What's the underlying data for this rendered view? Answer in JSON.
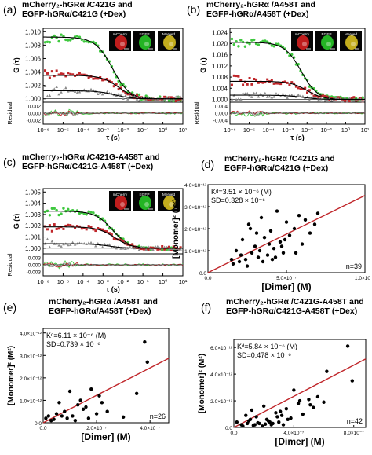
{
  "panels": [
    {
      "letter": "(a)",
      "title1": "mCherry₂-hGRα /C421G and",
      "title2": "EGFP-hGRα/C421G (+Dex)",
      "ylabel": "G (τ)",
      "xlabel": "τ (s)",
      "residual_label": "Residual",
      "yticks": [
        "1.010",
        "1.008",
        "1.006",
        "1.004",
        "1.002",
        "1.000"
      ],
      "res_ticks": [
        "0.002",
        "0.000",
        "-0.002"
      ],
      "xticks": [
        "10⁻⁶",
        "10⁻⁵",
        "10⁻⁴",
        "10⁻³",
        "10⁻²",
        "10⁻¹",
        "10⁰",
        "10¹"
      ],
      "inset": [
        "mCherry",
        "EGFP",
        "Merged"
      ]
    },
    {
      "letter": "(b)",
      "title1": "mCherry₂-hGRα /A458T and",
      "title2": "EGFP-hGRα/A458T (+Dex)",
      "ylabel": "G (τ)",
      "xlabel": "τ (s)",
      "residual_label": "Residual",
      "yticks": [
        "1.024",
        "1.020",
        "1.016",
        "1.012",
        "1.008",
        "1.004",
        "1.000"
      ],
      "res_ticks": [
        "0.004",
        "0.000",
        "-0.004"
      ],
      "xticks": [
        "10⁻⁶",
        "10⁻⁵",
        "10⁻⁴",
        "10⁻³",
        "10⁻²",
        "10⁻¹",
        "10⁰",
        "10¹"
      ],
      "inset": [
        "mCherry",
        "EGFP",
        "Merged"
      ]
    },
    {
      "letter": "(c)",
      "title1": "mCherry₂-hGRα /C421G-A458T and",
      "title2": "EGFP-hGRα/C421G-A458T (+Dex)",
      "ylabel": "G (τ)",
      "xlabel": "τ (s)",
      "residual_label": "Residual",
      "yticks": [
        "1.005",
        "1.004",
        "1.003",
        "1.002",
        "1.001",
        "1.000"
      ],
      "res_ticks": [
        "0.003",
        "0.000",
        "-0.003"
      ],
      "xticks": [
        "10⁻⁶",
        "10⁻⁵",
        "10⁻⁴",
        "10⁻³",
        "10⁻²",
        "10⁻¹",
        "10⁰",
        "10¹"
      ],
      "inset": [
        "mCherry",
        "EGFP",
        "Merged"
      ]
    },
    {
      "letter": "(d)",
      "title1": "mCherry₂-hGRα /C421G and",
      "title2": "EGFP-hGRα/C421G (+Dex)",
      "ylabel": "[Monomer]² (M²)",
      "xlabel": "[Dimer] (M)",
      "yticks": [
        "4.0×10⁻¹²",
        "3.0×10⁻¹²",
        "2.0×10⁻¹²",
        "1.0×10⁻¹²",
        "0.0"
      ],
      "xticks": [
        "0.0",
        "5.0×10⁻⁷",
        "1.0×10⁻⁶"
      ],
      "kd": "Kᵈ=3.51 × 10⁻⁶ (M)",
      "sd": "SD=0.328 × 10⁻⁶",
      "n": "n=39"
    },
    {
      "letter": "(e)",
      "title1": "mCherry₂-hGRα /A458T and",
      "title2": "EGFP-hGRα/A458T (+Dex)",
      "ylabel": "[Monomer]² (M²)",
      "xlabel": "[Dimer] (M)",
      "yticks": [
        "4.0×10⁻¹²",
        "3.0×10⁻¹²",
        "2.0×10⁻¹²",
        "1.0×10⁻¹²",
        "0.0"
      ],
      "xticks": [
        "0.0",
        "2.0×10⁻⁷",
        "4.0×10⁻⁷"
      ],
      "kd": "Kᵈ=6.11 × 10⁻⁶ (M)",
      "sd": "SD=0.739 × 10⁻⁶",
      "n": "n=26"
    },
    {
      "letter": "(f)",
      "title1": "mCherry₂-hGRα /C421G-A458T and",
      "title2": "EGFP-hGRα/C421G-A458T (+Dex)",
      "ylabel": "[Monomer]² (M²)",
      "xlabel": "[Dimer] (M)",
      "yticks": [
        "6.0×10⁻¹²",
        "4.0×10⁻¹²",
        "2.0×10⁻¹²",
        "0.0"
      ],
      "xticks": [
        "0.0",
        "4.0×10⁻⁷",
        "8.0×10⁻⁷"
      ],
      "kd": "Kᵈ=5.84 × 10⁻⁶ (M)",
      "sd": "SD=0.478 × 10⁻⁶",
      "n": "n=42"
    }
  ],
  "colors": {
    "green": "#3ec83e",
    "red": "#c0262a",
    "gray": "#8a8a8a",
    "fit": "#000000",
    "line": "#c0262a"
  },
  "chart_data": [
    {
      "type": "line",
      "panel": "a",
      "log_x": true,
      "xlim": [
        1e-06,
        10
      ],
      "ylim": [
        0.9995,
        1.0105
      ],
      "series": [
        {
          "color": "green",
          "G0": 1.0092,
          "tauD": 0.003
        },
        {
          "color": "red",
          "G0": 1.0035,
          "tauD": 0.006
        },
        {
          "color": "gray",
          "G0": 1.0012,
          "tauD": 0.004
        }
      ]
    },
    {
      "type": "line",
      "panel": "b",
      "log_x": true,
      "xlim": [
        1e-06,
        10
      ],
      "ylim": [
        0.999,
        1.0255
      ],
      "series": [
        {
          "color": "green",
          "G0": 1.0205,
          "tauD": 0.005
        },
        {
          "color": "red",
          "G0": 1.0065,
          "tauD": 0.01
        },
        {
          "color": "gray",
          "G0": 1.0015,
          "tauD": 0.006
        }
      ]
    },
    {
      "type": "line",
      "panel": "c",
      "log_x": true,
      "xlim": [
        1e-06,
        10
      ],
      "ylim": [
        0.9995,
        1.0053
      ],
      "series": [
        {
          "color": "green",
          "G0": 1.0033,
          "tauD": 0.003
        },
        {
          "color": "red",
          "G0": 1.0019,
          "tauD": 0.004
        },
        {
          "color": "gray",
          "G0": 1.0004,
          "tauD": 0.002
        }
      ]
    },
    {
      "type": "scatter",
      "panel": "d",
      "xlim": [
        0,
        1e-06
      ],
      "ylim": [
        0,
        4e-12
      ],
      "fit_slope": 3.51e-06,
      "x": [
        1.6e-07,
        1.8e-07,
        2e-07,
        2.2e-07,
        2.4e-07,
        2.6e-07,
        2.8e-07,
        3e-07,
        3.2e-07,
        3.4e-07,
        3.6e-07,
        3.8e-07,
        4e-07,
        4.2e-07,
        4.4e-07,
        4.6e-07,
        4.8e-07,
        5e-07,
        5.2e-07,
        5.5e-07,
        5.8e-07,
        6e-07,
        6.2e-07,
        6.5e-07,
        7e-07,
        1.5e-07,
        2.5e-07,
        3.1e-07,
        3.5e-07,
        3.9e-07,
        4.3e-07,
        4.9e-07,
        2.1e-07,
        2.7e-07,
        3.3e-07,
        4.1e-07,
        4.7e-07,
        5.6e-07,
        6.8e-07
      ],
      "y": [
        4e-13,
        1e-12,
        5e-13,
        1.5e-12,
        6e-13,
        2.2e-12,
        9e-13,
        1.2e-12,
        7e-13,
        2.5e-12,
        1.6e-12,
        8e-13,
        1.9e-12,
        1.1e-12,
        2.8e-12,
        1.4e-12,
        9e-13,
        2.3e-12,
        1.7e-12,
        2e-12,
        2.6e-12,
        1.3e-12,
        2.4e-12,
        1.8e-12,
        2.7e-12,
        6e-13,
        3e-13,
        1.8e-12,
        5e-13,
        1.3e-12,
        7e-13,
        1.5e-12,
        8e-13,
        2e-12,
        1e-12,
        6e-13,
        1.2e-12,
        9e-13,
        2.2e-12
      ]
    },
    {
      "type": "scatter",
      "panel": "e",
      "xlim": [
        0,
        4.7e-07
      ],
      "ylim": [
        0,
        4.2e-12
      ],
      "fit_slope": 6.11e-06,
      "x": [
        1e-08,
        2e-08,
        3e-08,
        5e-08,
        6e-08,
        8e-08,
        9e-08,
        1e-07,
        1.1e-07,
        1.3e-07,
        1.4e-07,
        1.5e-07,
        1.7e-07,
        1.8e-07,
        2e-07,
        2.2e-07,
        2.4e-07,
        4e-08,
        7e-08,
        1.2e-07,
        1.6e-07,
        2.1e-07,
        3e-07,
        3.5e-07,
        3.8e-07,
        3.9e-07
      ],
      "y": [
        2e-13,
        3e-13,
        1e-13,
        4e-13,
        9e-13,
        5e-13,
        2e-13,
        1.4e-12,
        3e-13,
        8e-13,
        1e-12,
        6e-13,
        2e-13,
        1.5e-12,
        4e-13,
        9e-13,
        5e-13,
        1.5e-13,
        3e-13,
        1e-13,
        7e-13,
        1.2e-12,
        2.5e-13,
        1.3e-12,
        3.6e-12,
        2.7e-12
      ]
    },
    {
      "type": "scatter",
      "panel": "f",
      "xlim": [
        0,
        8.8e-07
      ],
      "ylim": [
        0,
        6.6e-12
      ],
      "fit_slope": 5.84e-06,
      "x": [
        2e-08,
        5e-08,
        8e-08,
        1e-07,
        1.2e-07,
        1.5e-07,
        1.7e-07,
        2e-07,
        2.2e-07,
        2.5e-07,
        2.8e-07,
        3e-07,
        3.2e-07,
        3.5e-07,
        3.8e-07,
        4e-07,
        4.3e-07,
        4.6e-07,
        5e-07,
        5.3e-07,
        5.6e-07,
        6e-07,
        6e-08,
        9e-08,
        1.1e-07,
        1.4e-07,
        1.9e-07,
        2.3e-07,
        2.6e-07,
        2.9e-07,
        3.3e-07,
        3.6e-07,
        1.3e-07,
        1.6e-07,
        2.1e-07,
        2.4e-07,
        3.1e-07,
        4.4e-07,
        5.1e-07,
        6.2e-07,
        7.6e-07,
        7.9e-07
      ],
      "y": [
        4e-13,
        2e-13,
        9e-13,
        5e-13,
        1.3e-12,
        8e-13,
        3e-13,
        1.6e-12,
        6e-13,
        2e-13,
        1.1e-12,
        4e-13,
        9e-13,
        1.4e-12,
        7e-13,
        2.8e-12,
        1.8e-12,
        1e-12,
        2.1e-12,
        1.5e-12,
        2.3e-12,
        1.9e-12,
        1e-13,
        3e-13,
        6e-13,
        2e-13,
        1e-13,
        5e-13,
        3e-13,
        8e-13,
        2e-13,
        6e-13,
        1.5e-13,
        3.5e-13,
        2.5e-13,
        4e-13,
        1.2e-12,
        2e-12,
        1.7e-12,
        4.2e-12,
        6.1e-12,
        3.5e-12
      ]
    }
  ]
}
